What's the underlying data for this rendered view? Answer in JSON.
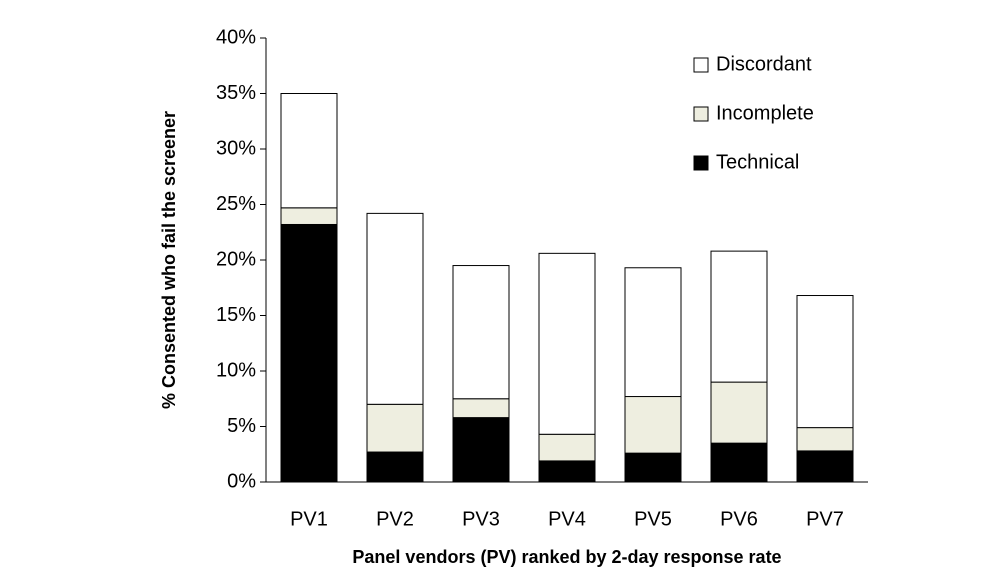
{
  "chart_data": {
    "type": "stacked_bar",
    "x_label": "Panel vendors (PV) ranked by 2-day response rate",
    "y_label": "% Consented who fail the screener",
    "categories": [
      "PV1",
      "PV2",
      "PV3",
      "PV4",
      "PV5",
      "PV6",
      "PV7"
    ],
    "series": [
      {
        "name": "Technical",
        "color": "#000000",
        "values": [
          23.2,
          2.7,
          5.8,
          1.9,
          2.6,
          3.5,
          2.8
        ]
      },
      {
        "name": "Incomplete",
        "color": "#eeeee0",
        "values": [
          1.5,
          4.3,
          1.7,
          2.4,
          5.1,
          5.5,
          2.1
        ]
      },
      {
        "name": "Discordant",
        "color": "#ffffff",
        "values": [
          10.3,
          17.2,
          12.0,
          16.3,
          11.6,
          11.8,
          11.9
        ]
      }
    ],
    "ylim": [
      0,
      40
    ],
    "yticks": [
      {
        "value": 0,
        "label": "0%"
      },
      {
        "value": 5,
        "label": "5%"
      },
      {
        "value": 10,
        "label": "10%"
      },
      {
        "value": 15,
        "label": "15%"
      },
      {
        "value": 20,
        "label": "20%"
      },
      {
        "value": 25,
        "label": "25%"
      },
      {
        "value": 30,
        "label": "30%"
      },
      {
        "value": 35,
        "label": "35%"
      },
      {
        "value": 40,
        "label": "40%"
      }
    ],
    "grid": false,
    "legend": "upper right"
  }
}
